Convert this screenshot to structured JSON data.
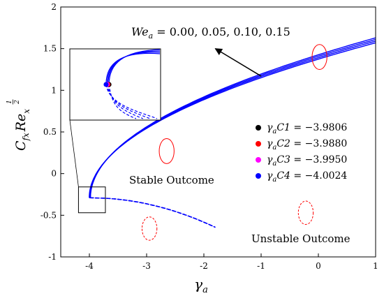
{
  "chart_data": {
    "type": "line",
    "x_axis": {
      "label": "γ",
      "label_sub": "a",
      "range": [
        -4.5,
        1
      ],
      "ticks": [
        "-4",
        "-3",
        "-2",
        "-1",
        "0",
        "1"
      ],
      "tick_values": [
        -4,
        -3,
        -2,
        -1,
        0,
        1
      ]
    },
    "y_axis": {
      "label_main": "C",
      "label_sub1": "fx",
      "label_mid": "Re",
      "label_sup_num": "1",
      "label_sup_den": "2",
      "label_sub2": "x",
      "range": [
        -1,
        2
      ],
      "ticks": [
        "-1",
        "-0.5",
        "0",
        "0.5",
        "1",
        "1.5",
        "2"
      ],
      "tick_values": [
        -1,
        -0.5,
        0,
        0.5,
        1,
        1.5,
        2
      ]
    },
    "annotation_we": {
      "main": "We",
      "sub": "a",
      "values": " = 0.00, 0.05, 0.10, 0.15"
    },
    "arrow": {
      "from": [
        -1,
        1.17
      ],
      "to": [
        -1.8,
        1.5
      ]
    },
    "label_stable": "Stable Outcome",
    "label_unstable": "Unstable Outcome",
    "legend": [
      {
        "gamma": "γ",
        "gamma_sub": "a",
        "name": "C1",
        "value": " = −3.9806",
        "color": "#000000"
      },
      {
        "gamma": "γ",
        "gamma_sub": "a",
        "name": "C2",
        "value": " = −3.9880",
        "color": "#ff0000"
      },
      {
        "gamma": "γ",
        "gamma_sub": "a",
        "name": "C3",
        "value": " = −3.9950",
        "color": "#ff00ff"
      },
      {
        "gamma": "γ",
        "gamma_sub": "a",
        "name": "C4",
        "value": " = −4.0024",
        "color": "#0000ff"
      }
    ],
    "series": [
      {
        "curve": 1,
        "turning_point": [
          -3.9806,
          -0.29
        ],
        "upper_end": [
          1,
          1.63
        ],
        "lower_end": [
          -1.8,
          -0.645
        ]
      },
      {
        "curve": 2,
        "turning_point": [
          -3.988,
          -0.29
        ],
        "upper_end": [
          1,
          1.61
        ],
        "lower_end": [
          -1.8,
          -0.645
        ]
      },
      {
        "curve": 3,
        "turning_point": [
          -3.995,
          -0.29
        ],
        "upper_end": [
          1,
          1.59
        ],
        "lower_end": [
          -1.8,
          -0.645
        ]
      },
      {
        "curve": 4,
        "turning_point": [
          -4.0024,
          -0.29
        ],
        "upper_end": [
          1,
          1.57
        ],
        "lower_end": [
          -1.8,
          -0.645
        ]
      }
    ],
    "solid_ellipses": [
      {
        "center": [
          0.02,
          1.4
        ],
        "rx": 0.13,
        "ry": 0.15
      },
      {
        "center": [
          -2.65,
          0.27
        ],
        "rx": 0.13,
        "ry": 0.15
      }
    ],
    "dashed_ellipses": [
      {
        "center": [
          -2.95,
          -0.66
        ],
        "rx": 0.13,
        "ry": 0.14
      },
      {
        "center": [
          -0.22,
          -0.47
        ],
        "rx": 0.13,
        "ry": 0.14
      }
    ],
    "zoom_box": {
      "x": [
        -4.19,
        -3.72
      ],
      "y": [
        -0.47,
        -0.16
      ]
    },
    "inset": {
      "x_range": [
        -4.27,
        -3.6
      ],
      "turning_y": 1.07
    },
    "grid": false,
    "line_color": "#0000ff",
    "ellipse_color": "#ff0000"
  }
}
